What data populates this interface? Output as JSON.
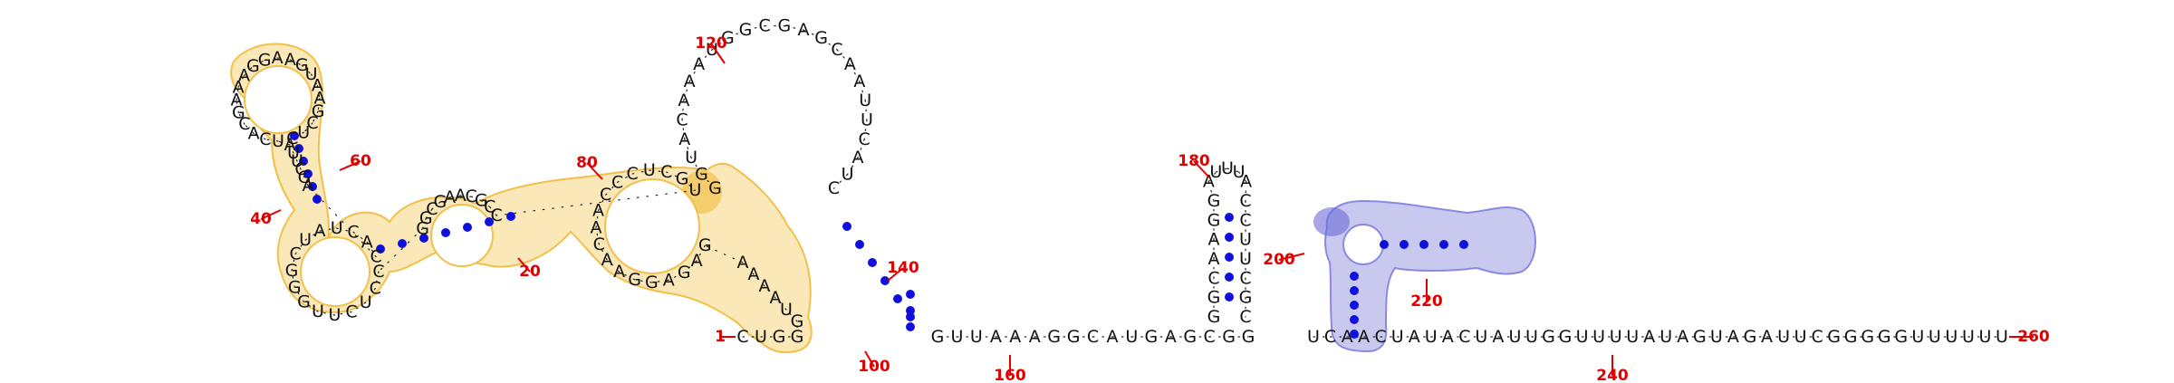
{
  "diagram": {
    "colors": {
      "pair_dot": "#1010dd",
      "number": "#e00000",
      "tick": "#e00000",
      "orange_fill": "#fbe8b8",
      "orange_stroke": "#f2c04a",
      "orange_dark": "#f0b630",
      "blue_fill": "#c9c9f0",
      "blue_stroke": "#8a8ae0",
      "blue_dark": "#6b6bd8"
    },
    "labels": {
      "n1": "1",
      "n20": "20",
      "n40": "40",
      "n60": "60",
      "n80": "80",
      "n100": "100",
      "n120": "120",
      "n140": "140",
      "n160": "160",
      "n180": "180",
      "n200": "200",
      "n220": "220",
      "n240": "240",
      "n260": "260"
    },
    "sequences": {
      "tail": "UCAACUAUACUAUUGGUUUUAUAGUAGAUUCGGGGGUUUUUU",
      "linker": "GUUAAAGGCAUGAGCGG",
      "hairpin_left": "GGCAAGG",
      "hairpin_loop": "AUUUA",
      "hairpin_right": "CCUUCGC",
      "big_loop": "GGUACAAAUGGCGAGCAAUUCAUC",
      "left_domain": "CUGGGUAAAAGAGAGGAACAACCCUCGUCCGCAAGCGGCCUCUUGGGCUAUCACAGCUUAUCACGAAAGGAAGUAAGCUCG"
    }
  }
}
